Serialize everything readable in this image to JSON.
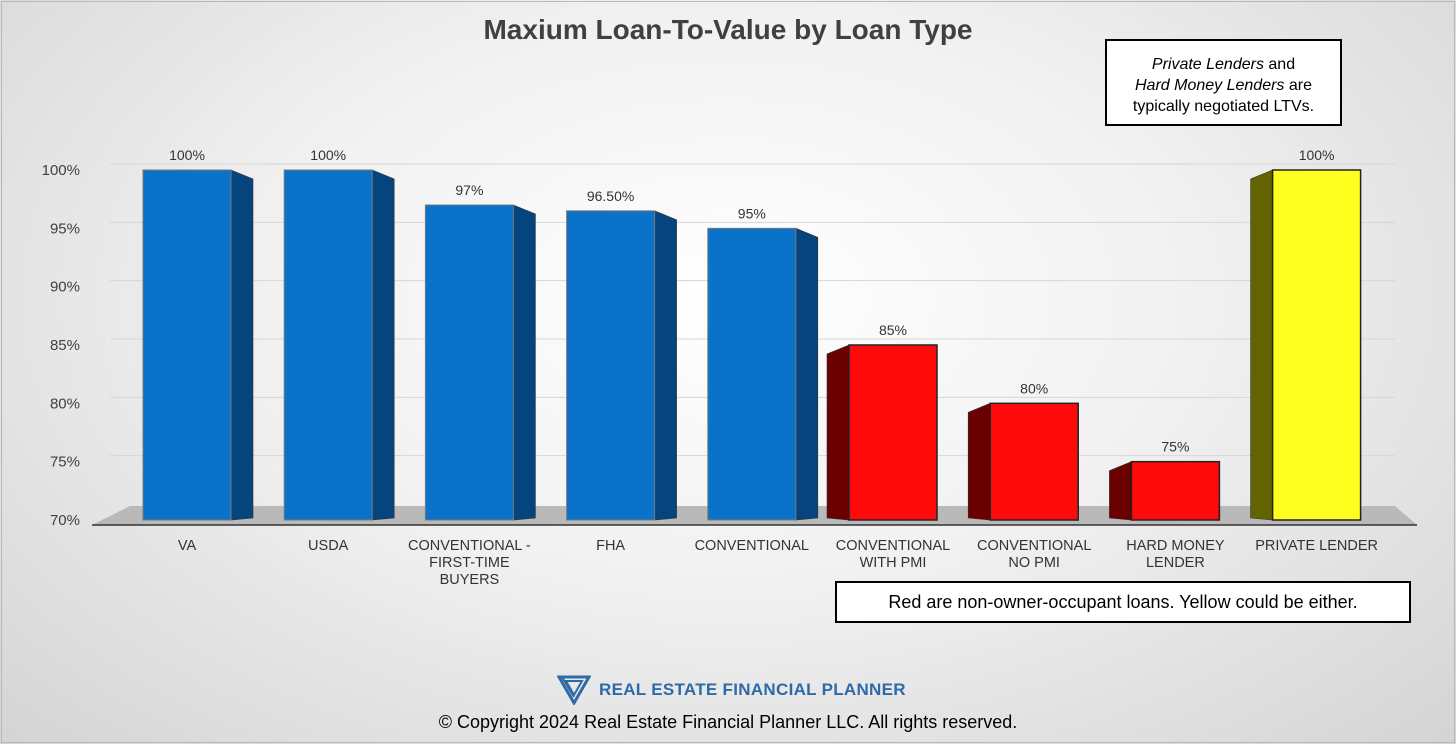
{
  "colors": {
    "blue_front": "#0a72c8",
    "blue_side": "#05447c",
    "red_front": "#ff0a0a",
    "red_side": "#6a0000",
    "yellow_front": "#ffff1f",
    "yellow_side": "#636300",
    "floor": "#b9b9b9",
    "brand": "#2f6aa8"
  },
  "chart_data": {
    "type": "bar",
    "title": "Maxium Loan-To-Value by Loan Type",
    "xlabel": "",
    "ylabel": "",
    "ylim": [
      70,
      100
    ],
    "yticks": [
      70,
      75,
      80,
      85,
      90,
      95,
      100
    ],
    "ytick_labels": [
      "70%",
      "75%",
      "80%",
      "85%",
      "90%",
      "95%",
      "100%"
    ],
    "grid": true,
    "categories": [
      [
        "VA"
      ],
      [
        "USDA"
      ],
      [
        "CONVENTIONAL -",
        "FIRST-TIME",
        "BUYERS"
      ],
      [
        "FHA"
      ],
      [
        "CONVENTIONAL"
      ],
      [
        "CONVENTIONAL",
        "WITH PMI"
      ],
      [
        "CONVENTIONAL",
        "NO PMI"
      ],
      [
        "HARD MONEY",
        "LENDER"
      ],
      [
        "PRIVATE LENDER"
      ]
    ],
    "values": [
      100,
      100,
      97,
      96.5,
      95,
      85,
      80,
      75,
      100
    ],
    "data_labels": [
      "100%",
      "100%",
      "97%",
      "96.50%",
      "95%",
      "85%",
      "80%",
      "75%",
      "100%"
    ],
    "bar_colors": [
      "blue",
      "blue",
      "blue",
      "blue",
      "blue",
      "red",
      "red",
      "red",
      "yellow"
    ]
  },
  "note": {
    "line1_italic": "Private Lenders",
    "line1_rest": " and",
    "line2_italic": "Hard Money Lenders",
    "line2_rest": " are",
    "line3": "typically negotiated LTVs."
  },
  "legend_note": "Red are non-owner-occupant loans. Yellow could be either.",
  "brand_name": "REAL ESTATE FINANCIAL PLANNER",
  "brand_icon": "v-triangle-logo-icon",
  "copyright": "© Copyright 2024 Real Estate Financial Planner LLC. All rights reserved."
}
